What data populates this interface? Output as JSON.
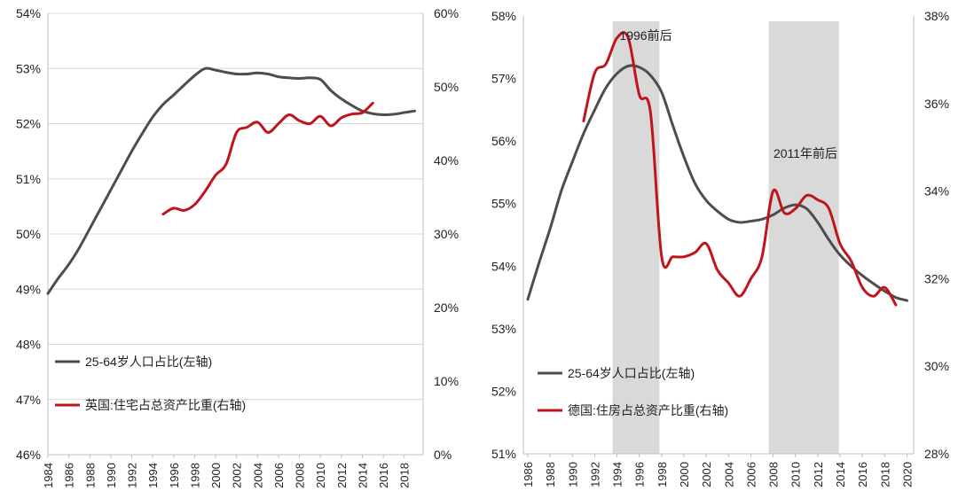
{
  "chart_data": [
    {
      "type": "line",
      "region": "uk",
      "x": [
        1984,
        1985,
        1986,
        1987,
        1988,
        1989,
        1990,
        1991,
        1992,
        1993,
        1994,
        1995,
        1996,
        1997,
        1998,
        1999,
        2000,
        2001,
        2002,
        2003,
        2004,
        2005,
        2006,
        2007,
        2008,
        2009,
        2010,
        2011,
        2012,
        2013,
        2014,
        2015,
        2016,
        2017,
        2018,
        2019
      ],
      "xticks": [
        "1984",
        "1986",
        "1988",
        "1990",
        "1992",
        "1994",
        "1996",
        "1998",
        "2000",
        "2002",
        "2004",
        "2006",
        "2008",
        "2010",
        "2012",
        "2014",
        "2016",
        "2018"
      ],
      "left_axis": {
        "ylim": [
          46,
          54
        ],
        "ticks": [
          "46%",
          "47%",
          "48%",
          "49%",
          "50%",
          "51%",
          "52%",
          "53%",
          "54%"
        ]
      },
      "right_axis": {
        "ylim": [
          0,
          60
        ],
        "ticks": [
          "0%",
          "10%",
          "20%",
          "30%",
          "40%",
          "50%",
          "60%"
        ]
      },
      "series": [
        {
          "name": "25-64岁人口占比(左轴)",
          "axis": "left",
          "color": "#4d4d4d",
          "values": [
            48.92,
            49.2,
            49.45,
            49.75,
            50.1,
            50.45,
            50.8,
            51.15,
            51.5,
            51.82,
            52.12,
            52.35,
            52.52,
            52.7,
            52.87,
            53.0,
            52.97,
            52.93,
            52.9,
            52.9,
            52.92,
            52.9,
            52.85,
            52.83,
            52.82,
            52.83,
            52.8,
            52.6,
            52.45,
            52.33,
            52.23,
            52.18,
            52.16,
            52.17,
            52.2,
            52.23
          ]
        },
        {
          "name": "英国:住宅占总资产比重(右轴)",
          "axis": "right",
          "color": "#c0141c",
          "x": [
            1995,
            1996,
            1997,
            1998,
            1999,
            2000,
            2001,
            2002,
            2003,
            2004,
            2005,
            2006,
            2007,
            2008,
            2009,
            2010,
            2011,
            2012,
            2013,
            2014,
            2015
          ],
          "values": [
            32.7,
            33.5,
            33.2,
            34.0,
            35.8,
            38.0,
            39.5,
            43.8,
            44.5,
            45.2,
            43.8,
            45.0,
            46.2,
            45.4,
            45.0,
            46.0,
            44.7,
            45.8,
            46.3,
            46.5,
            47.8
          ]
        }
      ]
    },
    {
      "type": "line",
      "region": "de",
      "x": [
        1986,
        1987,
        1988,
        1989,
        1990,
        1991,
        1992,
        1993,
        1994,
        1995,
        1996,
        1997,
        1998,
        1999,
        2000,
        2001,
        2002,
        2003,
        2004,
        2005,
        2006,
        2007,
        2008,
        2009,
        2010,
        2011,
        2012,
        2013,
        2014,
        2015,
        2016,
        2017,
        2018,
        2019,
        2020
      ],
      "xticks": [
        "1986",
        "1988",
        "1990",
        "1992",
        "1994",
        "1996",
        "1998",
        "2000",
        "2002",
        "2004",
        "2006",
        "2008",
        "2010",
        "2012",
        "2014",
        "2016",
        "2018",
        "2020"
      ],
      "left_axis": {
        "ylim": [
          51,
          58
        ],
        "ticks": [
          "51%",
          "52%",
          "53%",
          "54%",
          "55%",
          "56%",
          "57%",
          "58%"
        ]
      },
      "right_axis": {
        "ylim": [
          28,
          38
        ],
        "ticks": [
          "28%",
          "30%",
          "32%",
          "34%",
          "36%",
          "38%"
        ]
      },
      "shaded_periods": [
        {
          "from": 1993.6,
          "to": 1997.8,
          "label": "1996前后"
        },
        {
          "from": 2007.6,
          "to": 2013.9,
          "label": "2011年前后"
        }
      ],
      "series": [
        {
          "name": "25-64岁人口占比(左轴)",
          "axis": "left",
          "color": "#4d4d4d",
          "values": [
            53.47,
            54.05,
            54.6,
            55.2,
            55.67,
            56.12,
            56.5,
            56.85,
            57.08,
            57.2,
            57.18,
            57.05,
            56.78,
            56.25,
            55.75,
            55.32,
            55.05,
            54.88,
            54.75,
            54.7,
            54.72,
            54.75,
            54.82,
            54.93,
            54.98,
            54.92,
            54.7,
            54.42,
            54.18,
            54.0,
            53.85,
            53.72,
            53.6,
            53.5,
            53.45
          ]
        },
        {
          "name": "德国:住房占总资产比重(右轴)",
          "axis": "right",
          "color": "#c0141c",
          "x": [
            1991,
            1992,
            1993,
            1994,
            1995,
            1996,
            1997,
            1998,
            1999,
            2000,
            2001,
            2002,
            2003,
            2004,
            2005,
            2006,
            2007,
            2008,
            2009,
            2010,
            2011,
            2012,
            2013,
            2014,
            2015,
            2016,
            2017,
            2018,
            2019
          ],
          "values": [
            35.6,
            36.7,
            36.9,
            37.5,
            37.5,
            36.2,
            35.8,
            32.5,
            32.5,
            32.5,
            32.6,
            32.8,
            32.2,
            31.9,
            31.6,
            32.0,
            32.5,
            34.0,
            33.5,
            33.6,
            33.9,
            33.8,
            33.6,
            32.8,
            32.4,
            31.8,
            31.6,
            31.8,
            31.4
          ]
        }
      ]
    }
  ]
}
